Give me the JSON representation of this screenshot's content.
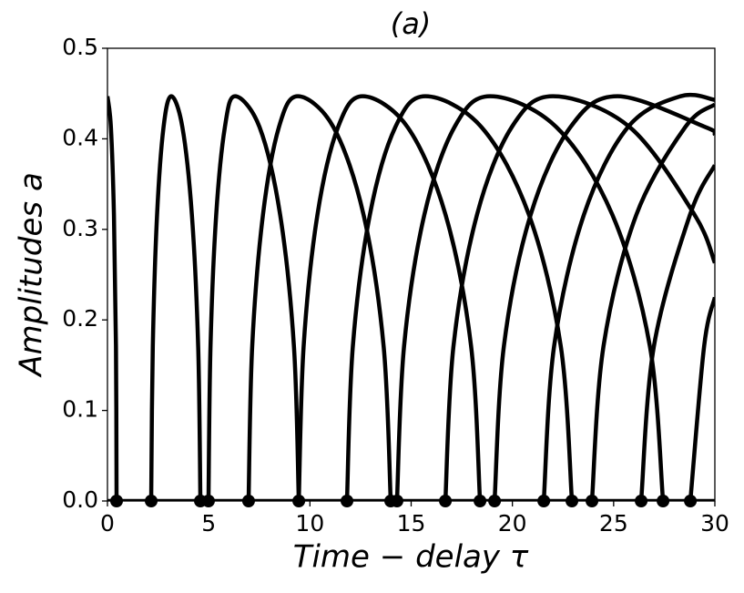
{
  "chart_data": {
    "type": "line",
    "title": "(a)",
    "x_label": "Time − delay τ",
    "y_label": "Amplitudes a",
    "xlim": [
      0,
      30
    ],
    "ylim": [
      0,
      0.5
    ],
    "xticks": [
      0,
      5,
      10,
      15,
      20,
      25,
      30
    ],
    "yticks": [
      {
        "value": 0,
        "label": "0.0"
      },
      0.1,
      0.2,
      0.3,
      0.4,
      0.5
    ],
    "color": "#000000",
    "series": [
      {
        "x": [
          0,
          30
        ],
        "values": [
          0,
          0
        ]
      },
      {
        "x": [
          0,
          0.17,
          0.32,
          0.42,
          0.45
        ],
        "values": [
          0.447,
          0.413,
          0.316,
          0.171,
          0
        ]
      },
      {
        "x": [
          2.16,
          2.24,
          2.45,
          2.77,
          3.15,
          3.7,
          4.17,
          4.48,
          4.59
        ],
        "values": [
          0,
          0.171,
          0.316,
          0.413,
          0.447,
          0.413,
          0.316,
          0.171,
          0
        ]
      },
      {
        "x": [
          4.99,
          5.09,
          5.37,
          5.8,
          6.3,
          7.51,
          8.53,
          9.21,
          9.45
        ],
        "values": [
          0,
          0.171,
          0.316,
          0.413,
          0.447,
          0.413,
          0.316,
          0.171,
          0
        ]
      },
      {
        "x": [
          6.97,
          7.15,
          7.68,
          8.47,
          9.4,
          11.16,
          12.65,
          13.64,
          13.99
        ],
        "values": [
          0,
          0.171,
          0.316,
          0.413,
          0.447,
          0.413,
          0.316,
          0.171,
          0
        ]
      },
      {
        "x": [
          9.45,
          9.69,
          10.37,
          11.39,
          12.6,
          14.82,
          16.7,
          17.96,
          18.4
        ],
        "values": [
          0,
          0.171,
          0.316,
          0.413,
          0.447,
          0.413,
          0.316,
          0.171,
          0
        ]
      },
      {
        "x": [
          11.83,
          12.12,
          12.96,
          14.22,
          15.7,
          18.47,
          20.82,
          22.39,
          22.94
        ],
        "values": [
          0,
          0.171,
          0.316,
          0.413,
          0.447,
          0.413,
          0.316,
          0.171,
          0
        ]
      },
      {
        "x": [
          14.3,
          14.65,
          15.65,
          17.14,
          18.9,
          22.17,
          24.94,
          26.79,
          27.44
        ],
        "values": [
          0,
          0.171,
          0.316,
          0.413,
          0.447,
          0.413,
          0.316,
          0.171,
          0
        ]
      },
      {
        "x": [
          16.69,
          17.09,
          18.25,
          19.97,
          22.0,
          25.79,
          29.0,
          30
        ],
        "values": [
          0,
          0.171,
          0.316,
          0.413,
          0.447,
          0.413,
          0.316,
          0.263
        ]
      },
      {
        "x": [
          19.12,
          19.58,
          20.9,
          22.87,
          25.2,
          29.53,
          30
        ],
        "values": [
          0,
          0.171,
          0.316,
          0.413,
          0.447,
          0.413,
          0.405
        ]
      },
      {
        "x": [
          21.55,
          22.06,
          23.53,
          25.71,
          28.3,
          30
        ],
        "values": [
          0,
          0.171,
          0.316,
          0.413,
          0.447,
          0.443
        ]
      },
      {
        "x": [
          23.93,
          24.5,
          26.12,
          28.54,
          30
        ],
        "values": [
          0,
          0.171,
          0.316,
          0.413,
          0.438
        ]
      },
      {
        "x": [
          26.36,
          26.99,
          28.77,
          30
        ],
        "values": [
          0,
          0.171,
          0.316,
          0.371
        ]
      },
      {
        "x": [
          28.79,
          29.47,
          30
        ],
        "values": [
          0,
          0.171,
          0.225
        ]
      }
    ],
    "points": {
      "x": [
        0.45,
        2.16,
        4.59,
        4.99,
        6.97,
        9.45,
        11.83,
        13.99,
        14.3,
        16.69,
        18.4,
        19.12,
        21.55,
        22.94,
        23.93,
        26.36,
        27.44,
        28.79
      ],
      "values": [
        0,
        0,
        0,
        0,
        0,
        0,
        0,
        0,
        0,
        0,
        0,
        0,
        0,
        0,
        0,
        0,
        0,
        0
      ]
    }
  }
}
